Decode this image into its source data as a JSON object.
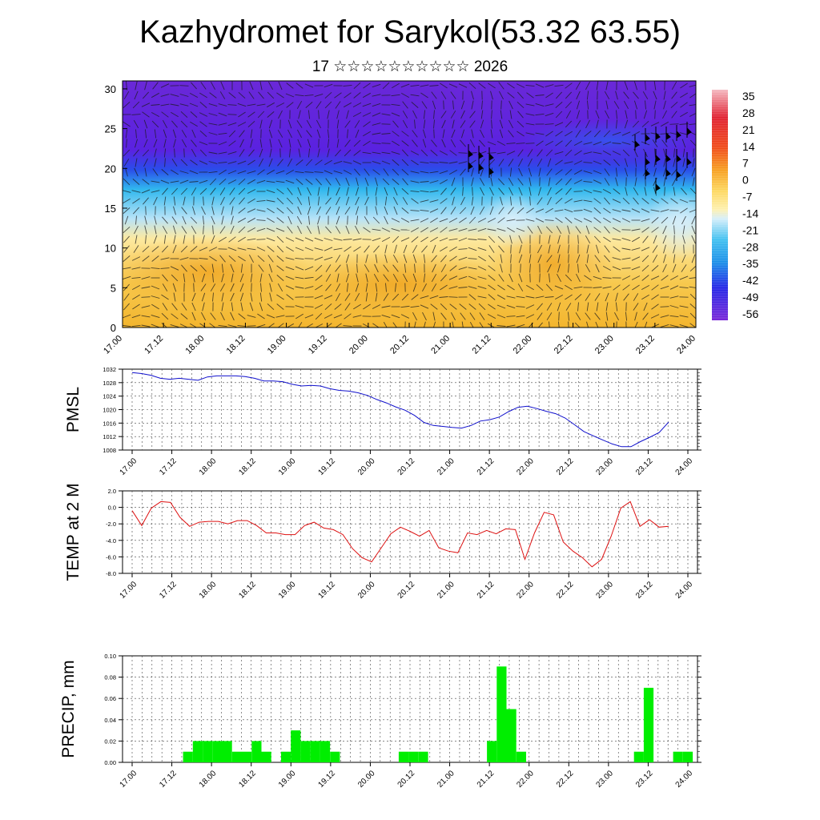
{
  "page": {
    "title": "Kazhydromet for Sarykol(53.32 63.55)",
    "subtitle": "17 ☆☆☆☆☆☆☆☆☆☆ 2026"
  },
  "chart_data": [
    {
      "type": "heatmap",
      "name": "cross-section",
      "x_tick_labels": [
        "17.00",
        "17.12",
        "18.00",
        "18.12",
        "19.00",
        "19.12",
        "20.00",
        "20.12",
        "21.00",
        "21.12",
        "22.00",
        "22.12",
        "23.00",
        "23.12",
        "24.00"
      ],
      "y_ticks": [
        0,
        5,
        10,
        15,
        20,
        25,
        30
      ],
      "ylim": [
        0,
        31
      ],
      "colorbar_labels": [
        "35",
        "28",
        "21",
        "14",
        "7",
        "0",
        "-7",
        "-14",
        "-21",
        "-28",
        "-35",
        "-42",
        "-49",
        "-56"
      ],
      "colors": {
        "warm": "#f5c64a",
        "cold": "#5a22e0",
        "mid": "#30b8ee"
      }
    },
    {
      "type": "line",
      "name": "pmsl",
      "ylabel": "PMSL",
      "ylim": [
        1008,
        1032
      ],
      "y_ticks": [
        1008,
        1012,
        1016,
        1020,
        1024,
        1028,
        1032
      ],
      "x_tick_labels": [
        "17.00",
        "17.12",
        "18.00",
        "18.12",
        "19.00",
        "19.12",
        "20.00",
        "20.12",
        "21.00",
        "21.12",
        "22.00",
        "22.12",
        "23.00",
        "23.12",
        "24.00"
      ],
      "color": "#1010cc",
      "values": [
        1031,
        1030.7,
        1030.2,
        1029.3,
        1029,
        1029.3,
        1029,
        1028.7,
        1029.7,
        1030,
        1030,
        1030,
        1029.8,
        1029.3,
        1028.5,
        1028.5,
        1028.3,
        1027.5,
        1027,
        1027.2,
        1027,
        1026.2,
        1025.7,
        1025.5,
        1025,
        1024.2,
        1023,
        1022,
        1020.8,
        1019.8,
        1018.3,
        1016.2,
        1015.3,
        1015,
        1014.7,
        1014.5,
        1015.3,
        1016.6,
        1017,
        1017.8,
        1019.4,
        1020.7,
        1021,
        1020.3,
        1019.5,
        1018.8,
        1017.5,
        1015.5,
        1013.5,
        1012.2,
        1011,
        1009.8,
        1009,
        1009,
        1010.5,
        1011.8,
        1013.2,
        1016.3
      ]
    },
    {
      "type": "line",
      "name": "temp",
      "ylabel": "TEMP at 2 M",
      "ylim": [
        -8,
        2
      ],
      "y_ticks": [
        -8,
        -6,
        -4,
        -2,
        0,
        2
      ],
      "y_tick_labels": [
        "-8.0",
        "-6.0",
        "-4.0",
        "-2.0",
        "0.0",
        "2.0"
      ],
      "x_tick_labels": [
        "17.00",
        "17.12",
        "18.00",
        "18.12",
        "19.00",
        "19.12",
        "20.00",
        "20.12",
        "21.00",
        "21.12",
        "22.00",
        "22.12",
        "23.00",
        "23.12",
        "24.00"
      ],
      "color": "#dd1111",
      "values": [
        -0.4,
        -2.2,
        -0.1,
        0.7,
        0.6,
        -1.2,
        -2.3,
        -1.8,
        -1.7,
        -1.7,
        -2,
        -1.6,
        -1.6,
        -2.2,
        -3.1,
        -3.1,
        -3.3,
        -3.3,
        -2.2,
        -1.8,
        -2.5,
        -2.7,
        -3.3,
        -5,
        -6.1,
        -6.6,
        -4.9,
        -3.2,
        -2.4,
        -2.9,
        -3.5,
        -2.8,
        -4.9,
        -5.3,
        -5.5,
        -3.1,
        -3.3,
        -2.8,
        -3.2,
        -2.6,
        -2.7,
        -6.3,
        -3.1,
        -0.6,
        -0.9,
        -4.2,
        -5.3,
        -6.1,
        -7.2,
        -6.3,
        -3.5,
        -0.1,
        0.7,
        -2.3,
        -1.5,
        -2.4,
        -2.3
      ]
    },
    {
      "type": "bar",
      "name": "precip",
      "ylabel": "PRECIP, mm",
      "ylim": [
        0,
        0.1
      ],
      "y_ticks": [
        0,
        0.02,
        0.04,
        0.06,
        0.08,
        0.1
      ],
      "y_tick_labels": [
        "0.00",
        "0.02",
        "0.04",
        "0.06",
        "0.08",
        "0.10"
      ],
      "x_tick_labels": [
        "17.00",
        "17.12",
        "18.00",
        "18.12",
        "19.00",
        "19.12",
        "20.00",
        "20.12",
        "21.00",
        "21.12",
        "22.00",
        "22.12",
        "23.00",
        "23.12",
        "24.00"
      ],
      "color": "#00ee00",
      "values": [
        0,
        0,
        0,
        0,
        0,
        0,
        0,
        0.01,
        0.02,
        0.02,
        0.02,
        0.02,
        0.01,
        0.01,
        0.02,
        0.01,
        0,
        0.01,
        0.03,
        0.02,
        0.02,
        0.02,
        0.01,
        0,
        0,
        0,
        0,
        0,
        0,
        0.01,
        0.01,
        0.01,
        0,
        0,
        0,
        0,
        0,
        0,
        0.02,
        0.09,
        0.05,
        0.01,
        0,
        0,
        0,
        0,
        0,
        0,
        0,
        0,
        0,
        0,
        0,
        0.01,
        0.07,
        0,
        0,
        0.01,
        0.01
      ]
    }
  ]
}
